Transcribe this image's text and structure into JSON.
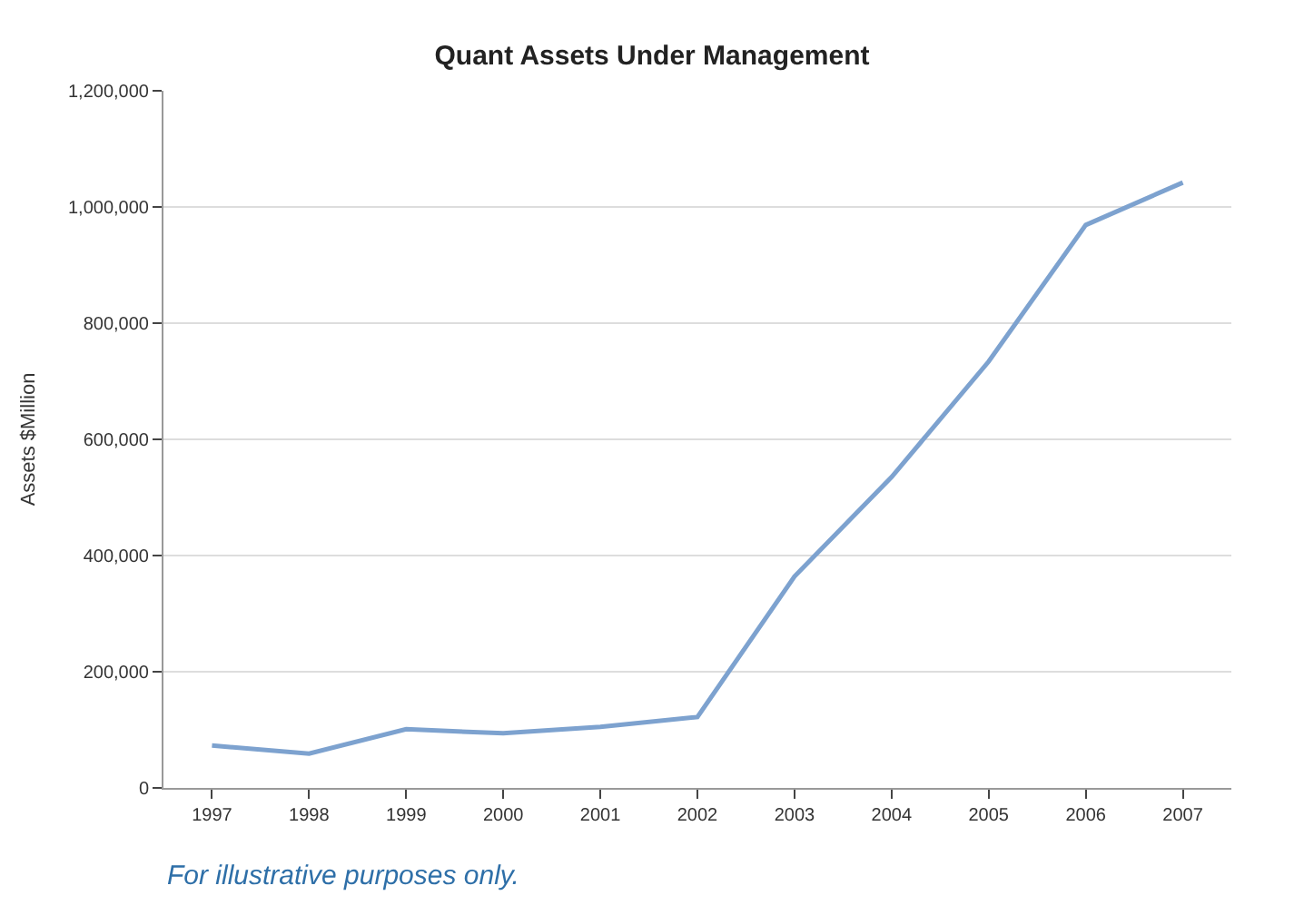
{
  "chart_data": {
    "type": "line",
    "title": "Quant Assets Under Management",
    "ylabel": "Assets $Million",
    "categories": [
      "1997",
      "1998",
      "1999",
      "2000",
      "2001",
      "2002",
      "2003",
      "2004",
      "2005",
      "2006",
      "2007"
    ],
    "series": [
      {
        "color": "#7da2cf",
        "values": [
          73000,
          59000,
          101000,
          94000,
          105000,
          122000,
          364000,
          535000,
          734000,
          969000,
          1042000
        ]
      }
    ],
    "ylim": [
      0,
      1200000
    ],
    "yticks": [
      {
        "value": 0,
        "label": "0"
      },
      {
        "value": 200000,
        "label": "200,000"
      },
      {
        "value": 400000,
        "label": "400,000"
      },
      {
        "value": 600000,
        "label": "600,000"
      },
      {
        "value": 800000,
        "label": "800,000"
      },
      {
        "value": 1000000,
        "label": "1,000,000"
      },
      {
        "value": 1200000,
        "label": "1,200,000"
      }
    ],
    "grid": "y",
    "annotations": [
      "For illustrative purposes only."
    ]
  }
}
